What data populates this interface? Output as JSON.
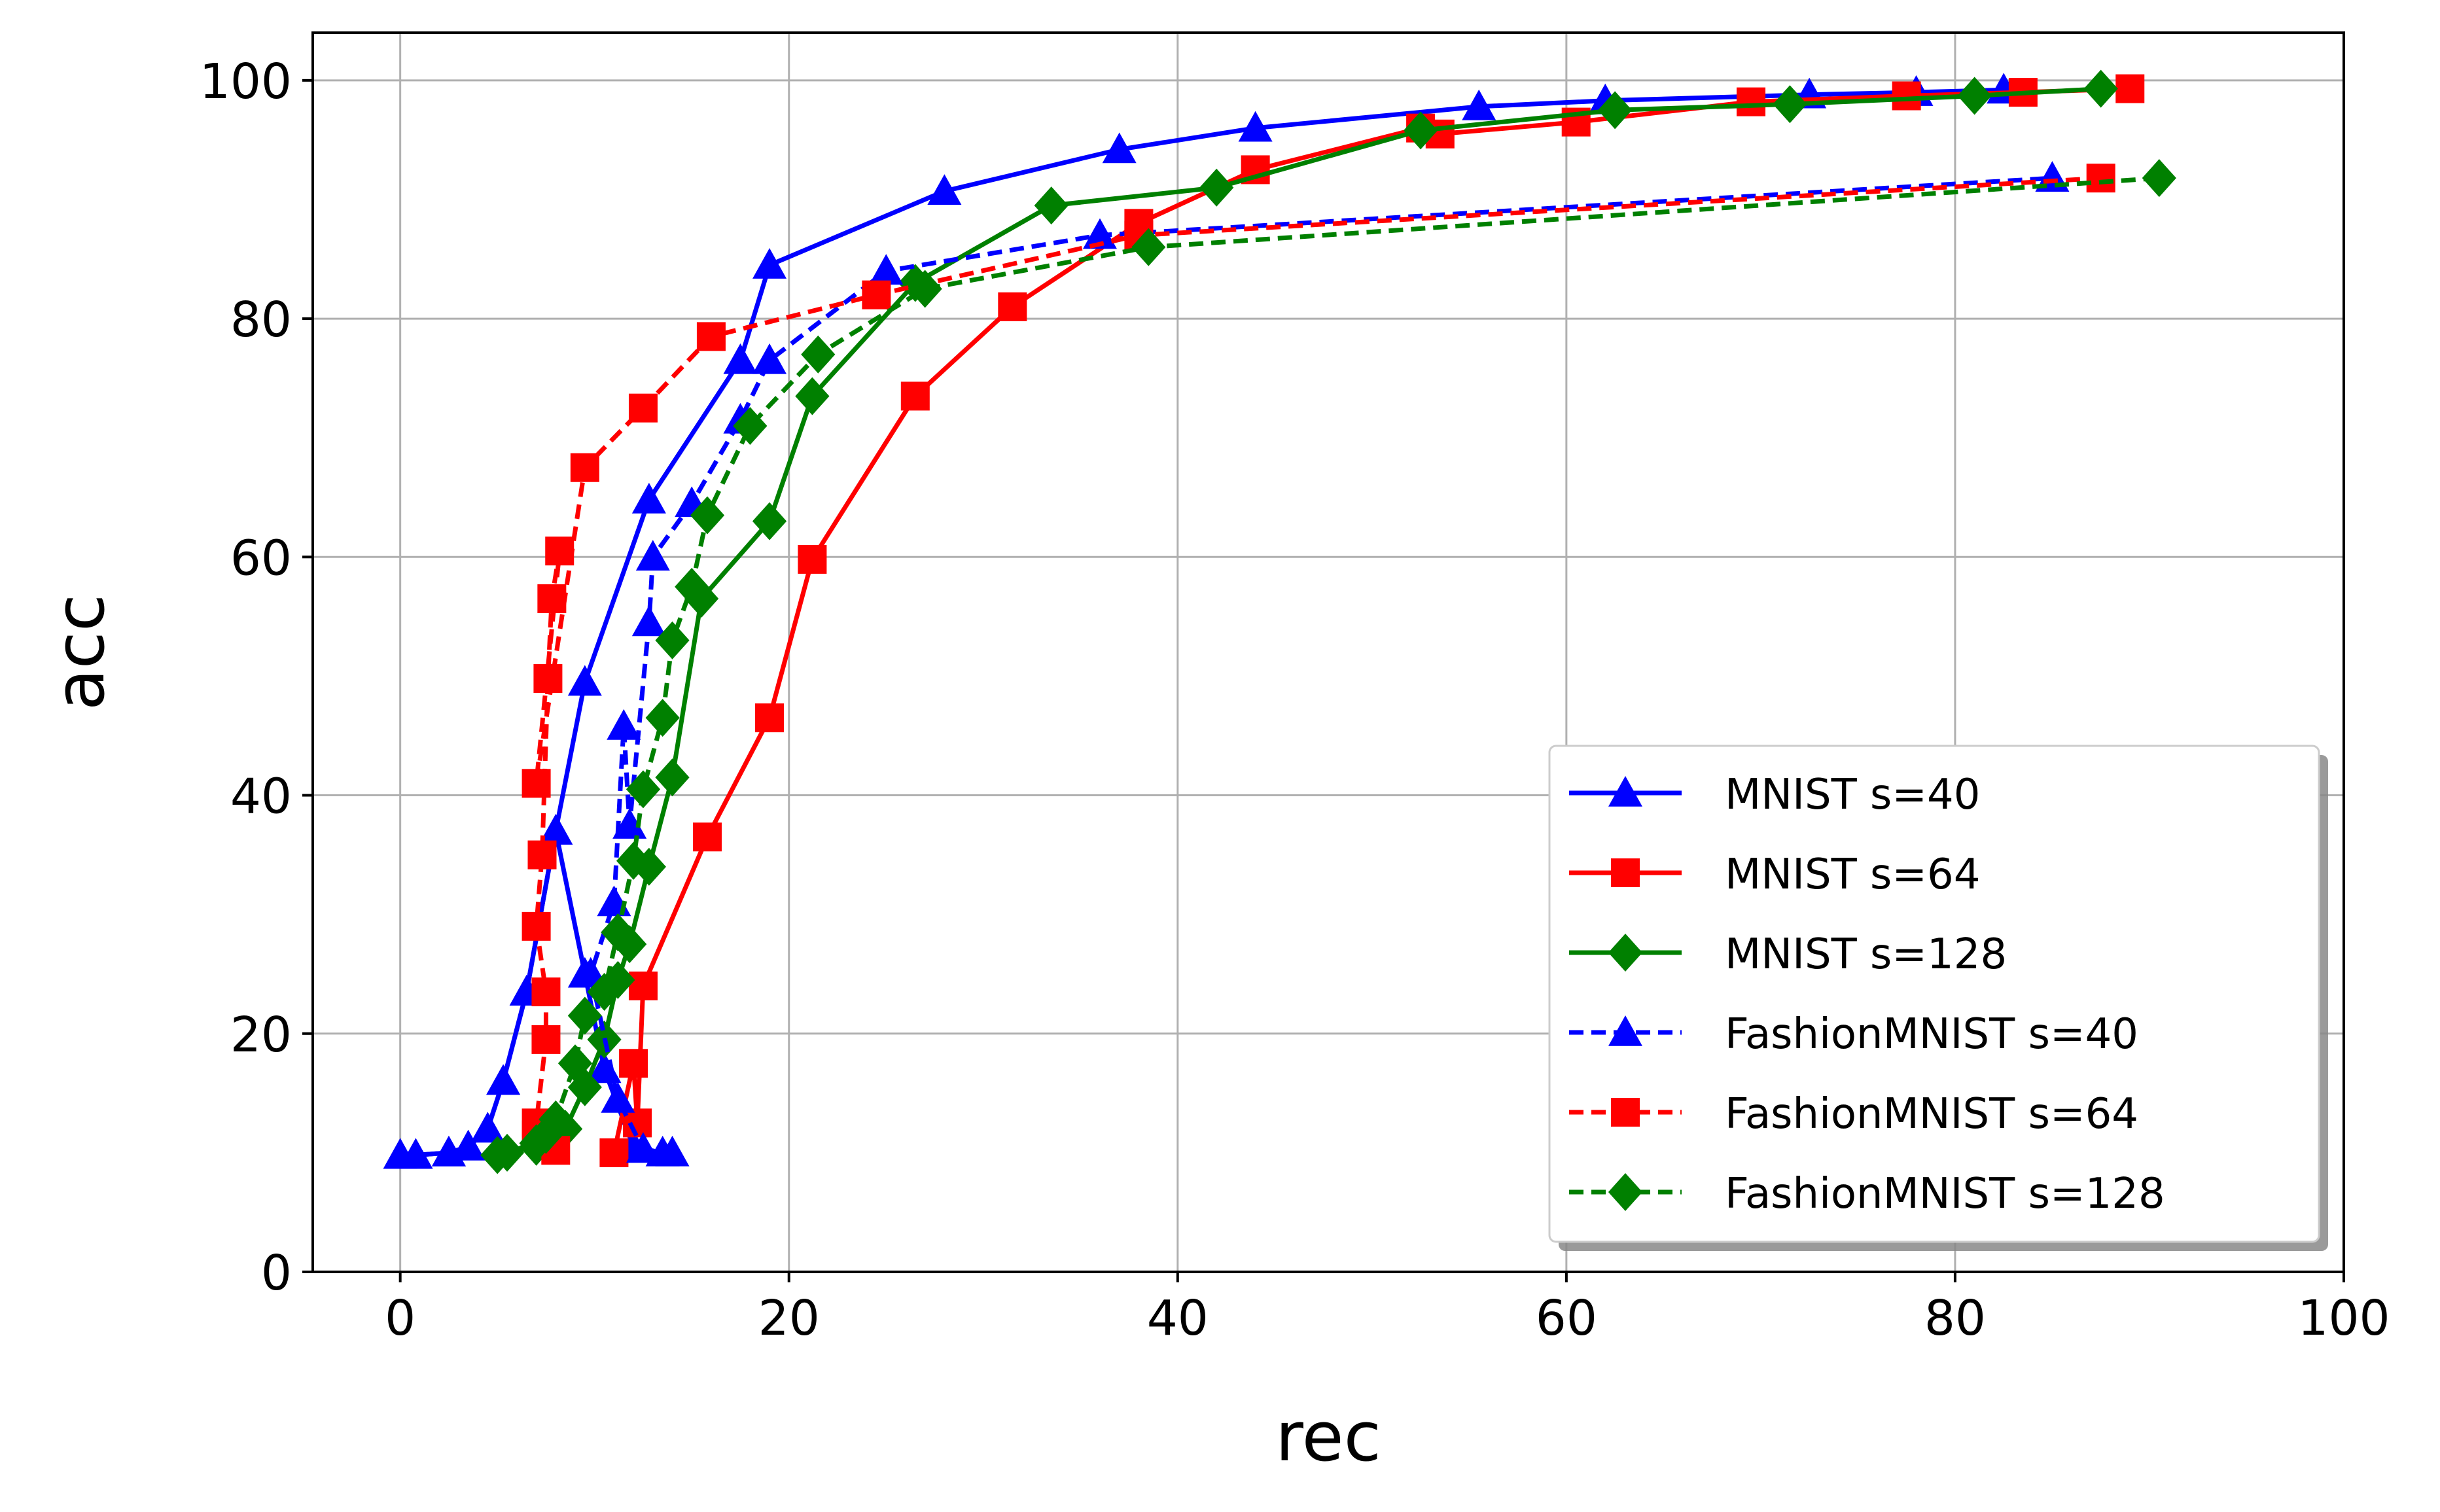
{
  "chart_data": {
    "type": "line",
    "title": "",
    "xlabel": "rec",
    "ylabel": "acc",
    "xlim": [
      -4.5,
      100
    ],
    "ylim": [
      0,
      104
    ],
    "xticks": [
      0,
      20,
      40,
      60,
      80,
      100
    ],
    "yticks": [
      0,
      20,
      40,
      60,
      80,
      100
    ],
    "grid": true,
    "legend_position": "lower-right",
    "series": [
      {
        "name": "MNIST s=40",
        "color": "#0000ff",
        "linestyle": "solid",
        "marker": "triangle",
        "x": [
          13.5,
          12.0,
          10.5,
          9.5,
          8.0,
          6.5,
          5.3,
          4.5,
          3.5,
          2.5,
          0.8,
          0.0
        ],
        "y": [
          10.0,
          10.5,
          17.0,
          25.0,
          37.0,
          23.5,
          16.0,
          12.0,
          10.5,
          10.0,
          9.8,
          9.8
        ],
        "x_upper": [
          0.0,
          0.8,
          2.5,
          3.5,
          4.5,
          5.3,
          6.5,
          8.0,
          9.5,
          12.8,
          17.5,
          19.0,
          28.0,
          37.0,
          44.0,
          55.5,
          62.0,
          72.5,
          78.0,
          82.5
        ],
        "y_upper": [
          9.8,
          9.8,
          10.0,
          10.5,
          12.0,
          16.0,
          23.5,
          37.0,
          49.5,
          64.8,
          76.5,
          84.5,
          90.7,
          94.2,
          96.0,
          97.8,
          98.3,
          98.8,
          99.0,
          99.2
        ]
      },
      {
        "name": "MNIST s=64",
        "color": "#ff0000",
        "linestyle": "solid",
        "marker": "square",
        "x": [
          11.0,
          12.0,
          12.2,
          12.5,
          15.8,
          19.0,
          21.2,
          26.5,
          31.5,
          38.0,
          44.0,
          52.5,
          53.5,
          60.5,
          69.5,
          77.5,
          83.5,
          89.0
        ],
        "y": [
          10.0,
          17.5,
          12.5,
          24.0,
          36.5,
          46.5,
          59.8,
          73.5,
          81.0,
          88.0,
          92.5,
          96.0,
          95.5,
          96.5,
          98.2,
          98.7,
          99.0,
          99.3
        ]
      },
      {
        "name": "MNIST s=128",
        "color": "#008000",
        "linestyle": "solid",
        "marker": "diamond",
        "x": [
          5.5,
          7.0,
          8.5,
          9.5,
          10.5,
          11.2,
          11.8,
          12.8,
          14.0,
          15.5,
          19.0,
          21.2,
          26.5,
          33.5,
          42.0,
          52.5,
          62.5,
          71.5,
          81.0,
          87.5
        ],
        "y": [
          10.0,
          10.5,
          12.0,
          15.5,
          19.5,
          24.5,
          27.5,
          34.0,
          41.5,
          56.5,
          63.0,
          73.5,
          83.0,
          89.5,
          91.0,
          95.8,
          97.5,
          98.0,
          98.7,
          99.3
        ]
      },
      {
        "name": "FashionMNIST s=40",
        "color": "#0000ff",
        "linestyle": "dashed",
        "marker": "triangle",
        "x": [
          14.0,
          12.5,
          11.2,
          9.8,
          11.0,
          11.5,
          11.8,
          12.8,
          13.0,
          15.0,
          17.5,
          19.0,
          25.0,
          36.0,
          85.0
        ],
        "y": [
          10.0,
          10.3,
          14.5,
          25.0,
          31.0,
          45.8,
          37.5,
          54.5,
          60.0,
          64.5,
          71.5,
          76.5,
          84.0,
          87.0,
          91.8
        ]
      },
      {
        "name": "FashionMNIST s=64",
        "color": "#ff0000",
        "linestyle": "dashed",
        "marker": "square",
        "x": [
          8.0,
          7.0,
          7.0,
          7.5,
          7.5,
          7.0,
          7.3,
          7.6,
          7.8,
          8.2,
          7.0,
          9.5,
          12.5,
          16.0,
          24.5,
          38.0,
          87.5
        ],
        "y": [
          10.2,
          11.5,
          12.5,
          19.5,
          23.5,
          29.0,
          35.0,
          49.8,
          56.5,
          60.5,
          41.0,
          67.5,
          72.5,
          78.5,
          82.0,
          87.0,
          91.8
        ]
      },
      {
        "name": "FashionMNIST s=128",
        "color": "#008000",
        "linestyle": "dashed",
        "marker": "diamond",
        "x": [
          5.0,
          7.0,
          7.5,
          8.0,
          9.0,
          9.5,
          10.5,
          11.2,
          12.0,
          12.5,
          13.5,
          14.0,
          15.0,
          15.8,
          18.0,
          21.5,
          27.0,
          38.5,
          90.5
        ],
        "y": [
          9.8,
          10.8,
          11.5,
          12.8,
          17.5,
          21.5,
          23.5,
          28.5,
          34.5,
          40.5,
          46.5,
          53.0,
          57.5,
          63.5,
          71.0,
          77.0,
          82.5,
          86.0,
          91.8
        ]
      }
    ]
  }
}
